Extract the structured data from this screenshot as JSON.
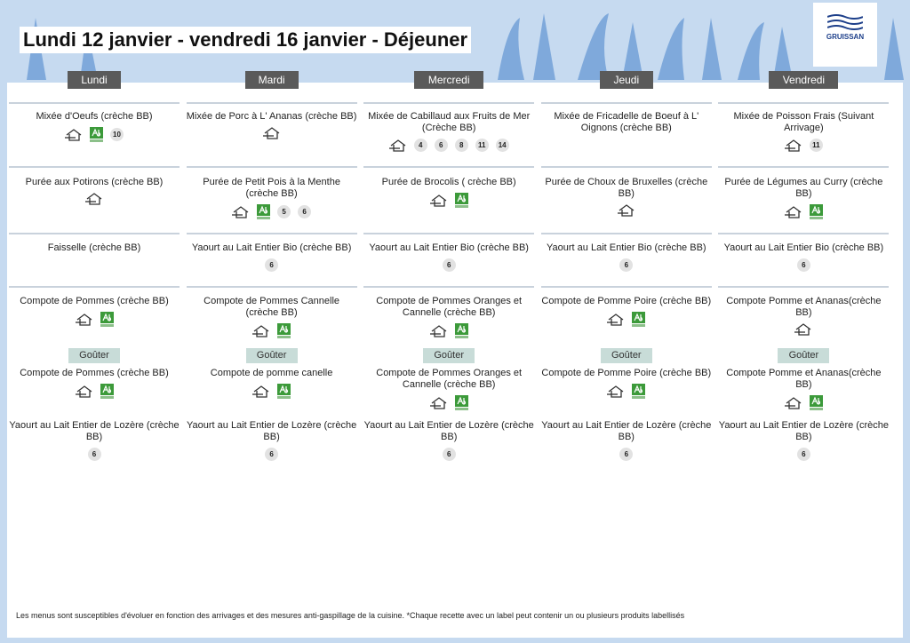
{
  "header": {
    "title": "Lundi 12 janvier - vendredi 16 janvier  - Déjeuner",
    "logo": "GRUISSAN"
  },
  "days": [
    {
      "name": "Lundi",
      "lunch": [
        {
          "name": "Mixée d'Oeufs (crèche BB)",
          "homemade": true,
          "organic": true,
          "allergens": [
            "10"
          ]
        },
        {
          "name": "Purée aux Potirons (crèche BB)",
          "homemade": true,
          "organic": false,
          "allergens": []
        },
        {
          "name": "Faisselle (crèche BB)",
          "homemade": false,
          "organic": false,
          "allergens": []
        },
        {
          "name": "Compote de Pommes (crèche BB)",
          "homemade": true,
          "organic": true,
          "allergens": []
        }
      ],
      "snack_label": "Goûter",
      "snack": [
        {
          "name": "Compote de Pommes (crèche BB)",
          "homemade": true,
          "organic": true,
          "allergens": []
        },
        {
          "name": "Yaourt au Lait Entier de Lozère (crèche BB)",
          "homemade": false,
          "organic": false,
          "allergens": [
            "6"
          ]
        }
      ]
    },
    {
      "name": "Mardi",
      "lunch": [
        {
          "name": "Mixée de Porc à L' Ananas  (crèche BB)",
          "homemade": true,
          "organic": false,
          "allergens": []
        },
        {
          "name": "Purée de Petit Pois à la Menthe (crèche BB)",
          "homemade": true,
          "organic": true,
          "allergens": [
            "5",
            "6"
          ]
        },
        {
          "name": "Yaourt au Lait Entier Bio  (crèche BB)",
          "homemade": false,
          "organic": false,
          "allergens": [
            "6"
          ]
        },
        {
          "name": "Compote de Pommes Cannelle (crèche BB)",
          "homemade": true,
          "organic": true,
          "allergens": []
        }
      ],
      "snack_label": "Goûter",
      "snack": [
        {
          "name": "Compote de pomme canelle",
          "homemade": true,
          "organic": true,
          "allergens": []
        },
        {
          "name": "Yaourt au Lait Entier de Lozère (crèche BB)",
          "homemade": false,
          "organic": false,
          "allergens": [
            "6"
          ]
        }
      ]
    },
    {
      "name": "Mercredi",
      "lunch": [
        {
          "name": "Mixée de Cabillaud aux Fruits de Mer (Crèche BB)",
          "homemade": true,
          "organic": false,
          "allergens": [
            "4",
            "6",
            "8",
            "11",
            "14"
          ]
        },
        {
          "name": "Purée de Brocolis ( crèche BB)",
          "homemade": true,
          "organic": true,
          "allergens": []
        },
        {
          "name": "Yaourt au Lait Entier Bio  (crèche BB)",
          "homemade": false,
          "organic": false,
          "allergens": [
            "6"
          ]
        },
        {
          "name": "Compote de Pommes Oranges et Cannelle (crèche BB)",
          "homemade": true,
          "organic": true,
          "allergens": []
        }
      ],
      "snack_label": "Goûter",
      "snack": [
        {
          "name": "Compote de Pommes Oranges et Cannelle (crèche BB)",
          "homemade": true,
          "organic": true,
          "allergens": []
        },
        {
          "name": "Yaourt au Lait Entier de Lozère (crèche BB)",
          "homemade": false,
          "organic": false,
          "allergens": [
            "6"
          ]
        }
      ]
    },
    {
      "name": "Jeudi",
      "lunch": [
        {
          "name": "Mixée de Fricadelle de Boeuf à L' Oignons (crèche BB)",
          "homemade": false,
          "organic": false,
          "allergens": []
        },
        {
          "name": "Purée de Choux de Bruxelles (crèche BB)",
          "homemade": true,
          "organic": false,
          "allergens": []
        },
        {
          "name": "Yaourt au Lait Entier Bio  (crèche BB)",
          "homemade": false,
          "organic": false,
          "allergens": [
            "6"
          ]
        },
        {
          "name": "Compote de Pomme Poire (crèche BB)",
          "homemade": true,
          "organic": true,
          "allergens": []
        }
      ],
      "snack_label": "Goûter",
      "snack": [
        {
          "name": "Compote de Pomme Poire (crèche BB)",
          "homemade": true,
          "organic": true,
          "allergens": []
        },
        {
          "name": "Yaourt au Lait Entier de Lozère (crèche BB)",
          "homemade": false,
          "organic": false,
          "allergens": [
            "6"
          ]
        }
      ]
    },
    {
      "name": "Vendredi",
      "lunch": [
        {
          "name": "Mixée de Poisson Frais (Suivant Arrivage)",
          "homemade": true,
          "organic": false,
          "allergens": [
            "11"
          ]
        },
        {
          "name": "Purée de Légumes au Curry (crèche BB)",
          "homemade": true,
          "organic": true,
          "allergens": []
        },
        {
          "name": "Yaourt au Lait Entier Bio  (crèche BB)",
          "homemade": false,
          "organic": false,
          "allergens": [
            "6"
          ]
        },
        {
          "name": "Compote Pomme et Ananas(crèche BB)",
          "homemade": true,
          "organic": false,
          "allergens": []
        }
      ],
      "snack_label": "Goûter",
      "snack": [
        {
          "name": "Compote Pomme et Ananas(crèche BB)",
          "homemade": true,
          "organic": true,
          "allergens": []
        },
        {
          "name": "Yaourt au Lait Entier de Lozère (crèche BB)",
          "homemade": false,
          "organic": false,
          "allergens": [
            "6"
          ]
        }
      ]
    }
  ],
  "footer": {
    "note": "Les menus sont susceptibles d'évoluer en fonction des arrivages et des mesures anti-gaspillage de la cuisine. *Chaque recette avec un label peut contenir un ou plusieurs produits labellisés"
  }
}
